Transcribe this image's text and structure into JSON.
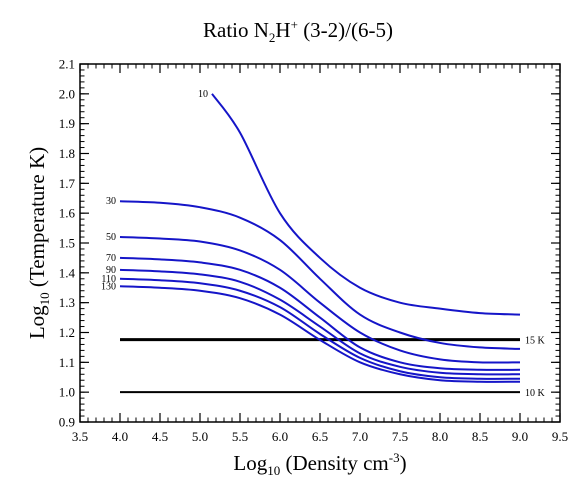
{
  "chart_data": {
    "type": "line",
    "title": {
      "prefix": "Ratio N",
      "sub1": "2",
      "mid": "H",
      "sup1": "+",
      "suffix": " (3-2)/(6-5)"
    },
    "xlabel": {
      "main": "Log",
      "sub": "10",
      "rest": " (Density cm",
      "sup": "-3",
      "end": ")"
    },
    "ylabel": {
      "main": "Log",
      "sub": "10",
      "rest": " (Temperature K)"
    },
    "xlim": [
      3.5,
      9.5
    ],
    "ylim": [
      0.9,
      2.1
    ],
    "xticks": [
      "3.5",
      "4.0",
      "4.5",
      "5.0",
      "5.5",
      "6.0",
      "6.5",
      "7.0",
      "7.5",
      "8.0",
      "8.5",
      "9.0",
      "9.5"
    ],
    "yticks": [
      "0.9",
      "1.0",
      "1.1",
      "1.2",
      "1.3",
      "1.4",
      "1.5",
      "1.6",
      "1.7",
      "1.8",
      "1.9",
      "2.0",
      "2.1"
    ],
    "x_minor_step": 0.1,
    "y_minor_step": 0.02,
    "series_color": "#1515c8",
    "hline_color": "#000000",
    "grid": false,
    "series": [
      {
        "name": "10",
        "points": [
          [
            5.15,
            2.0
          ],
          [
            5.5,
            1.87
          ],
          [
            6.0,
            1.6
          ],
          [
            6.5,
            1.45
          ],
          [
            7.0,
            1.35
          ],
          [
            7.5,
            1.3
          ],
          [
            8.0,
            1.28
          ],
          [
            8.5,
            1.265
          ],
          [
            9.0,
            1.26
          ]
        ]
      },
      {
        "name": "30",
        "points": [
          [
            4.0,
            1.64
          ],
          [
            4.5,
            1.635
          ],
          [
            5.0,
            1.62
          ],
          [
            5.5,
            1.585
          ],
          [
            6.0,
            1.51
          ],
          [
            6.5,
            1.38
          ],
          [
            7.0,
            1.26
          ],
          [
            7.5,
            1.2
          ],
          [
            8.0,
            1.165
          ],
          [
            8.5,
            1.15
          ],
          [
            9.0,
            1.145
          ]
        ]
      },
      {
        "name": "50",
        "points": [
          [
            4.0,
            1.52
          ],
          [
            4.5,
            1.515
          ],
          [
            5.0,
            1.505
          ],
          [
            5.5,
            1.475
          ],
          [
            6.0,
            1.41
          ],
          [
            6.5,
            1.3
          ],
          [
            7.0,
            1.2
          ],
          [
            7.5,
            1.14
          ],
          [
            8.0,
            1.11
          ],
          [
            8.5,
            1.1
          ],
          [
            9.0,
            1.1
          ]
        ]
      },
      {
        "name": "70",
        "points": [
          [
            4.0,
            1.45
          ],
          [
            4.5,
            1.445
          ],
          [
            5.0,
            1.435
          ],
          [
            5.5,
            1.41
          ],
          [
            6.0,
            1.35
          ],
          [
            6.5,
            1.25
          ],
          [
            7.0,
            1.15
          ],
          [
            7.5,
            1.1
          ],
          [
            8.0,
            1.08
          ],
          [
            8.5,
            1.075
          ],
          [
            9.0,
            1.075
          ]
        ]
      },
      {
        "name": "90",
        "points": [
          [
            4.0,
            1.41
          ],
          [
            4.5,
            1.405
          ],
          [
            5.0,
            1.395
          ],
          [
            5.5,
            1.37
          ],
          [
            6.0,
            1.31
          ],
          [
            6.5,
            1.22
          ],
          [
            7.0,
            1.13
          ],
          [
            7.5,
            1.085
          ],
          [
            8.0,
            1.065
          ],
          [
            8.5,
            1.06
          ],
          [
            9.0,
            1.06
          ]
        ]
      },
      {
        "name": "110",
        "points": [
          [
            4.0,
            1.38
          ],
          [
            4.5,
            1.375
          ],
          [
            5.0,
            1.365
          ],
          [
            5.5,
            1.34
          ],
          [
            6.0,
            1.285
          ],
          [
            6.5,
            1.195
          ],
          [
            7.0,
            1.115
          ],
          [
            7.5,
            1.07
          ],
          [
            8.0,
            1.05
          ],
          [
            8.5,
            1.045
          ],
          [
            9.0,
            1.045
          ]
        ]
      },
      {
        "name": "130",
        "points": [
          [
            4.0,
            1.355
          ],
          [
            4.5,
            1.35
          ],
          [
            5.0,
            1.34
          ],
          [
            5.5,
            1.315
          ],
          [
            6.0,
            1.26
          ],
          [
            6.5,
            1.175
          ],
          [
            7.0,
            1.1
          ],
          [
            7.5,
            1.06
          ],
          [
            8.0,
            1.04
          ],
          [
            8.5,
            1.035
          ],
          [
            9.0,
            1.035
          ]
        ]
      }
    ],
    "hlines": [
      {
        "label": "15 K",
        "y": 1.176,
        "x": [
          4.0,
          9.0
        ],
        "weight": "thick"
      },
      {
        "label": "10 K",
        "y": 1.0,
        "x": [
          4.0,
          9.0
        ],
        "weight": "normal"
      }
    ]
  }
}
